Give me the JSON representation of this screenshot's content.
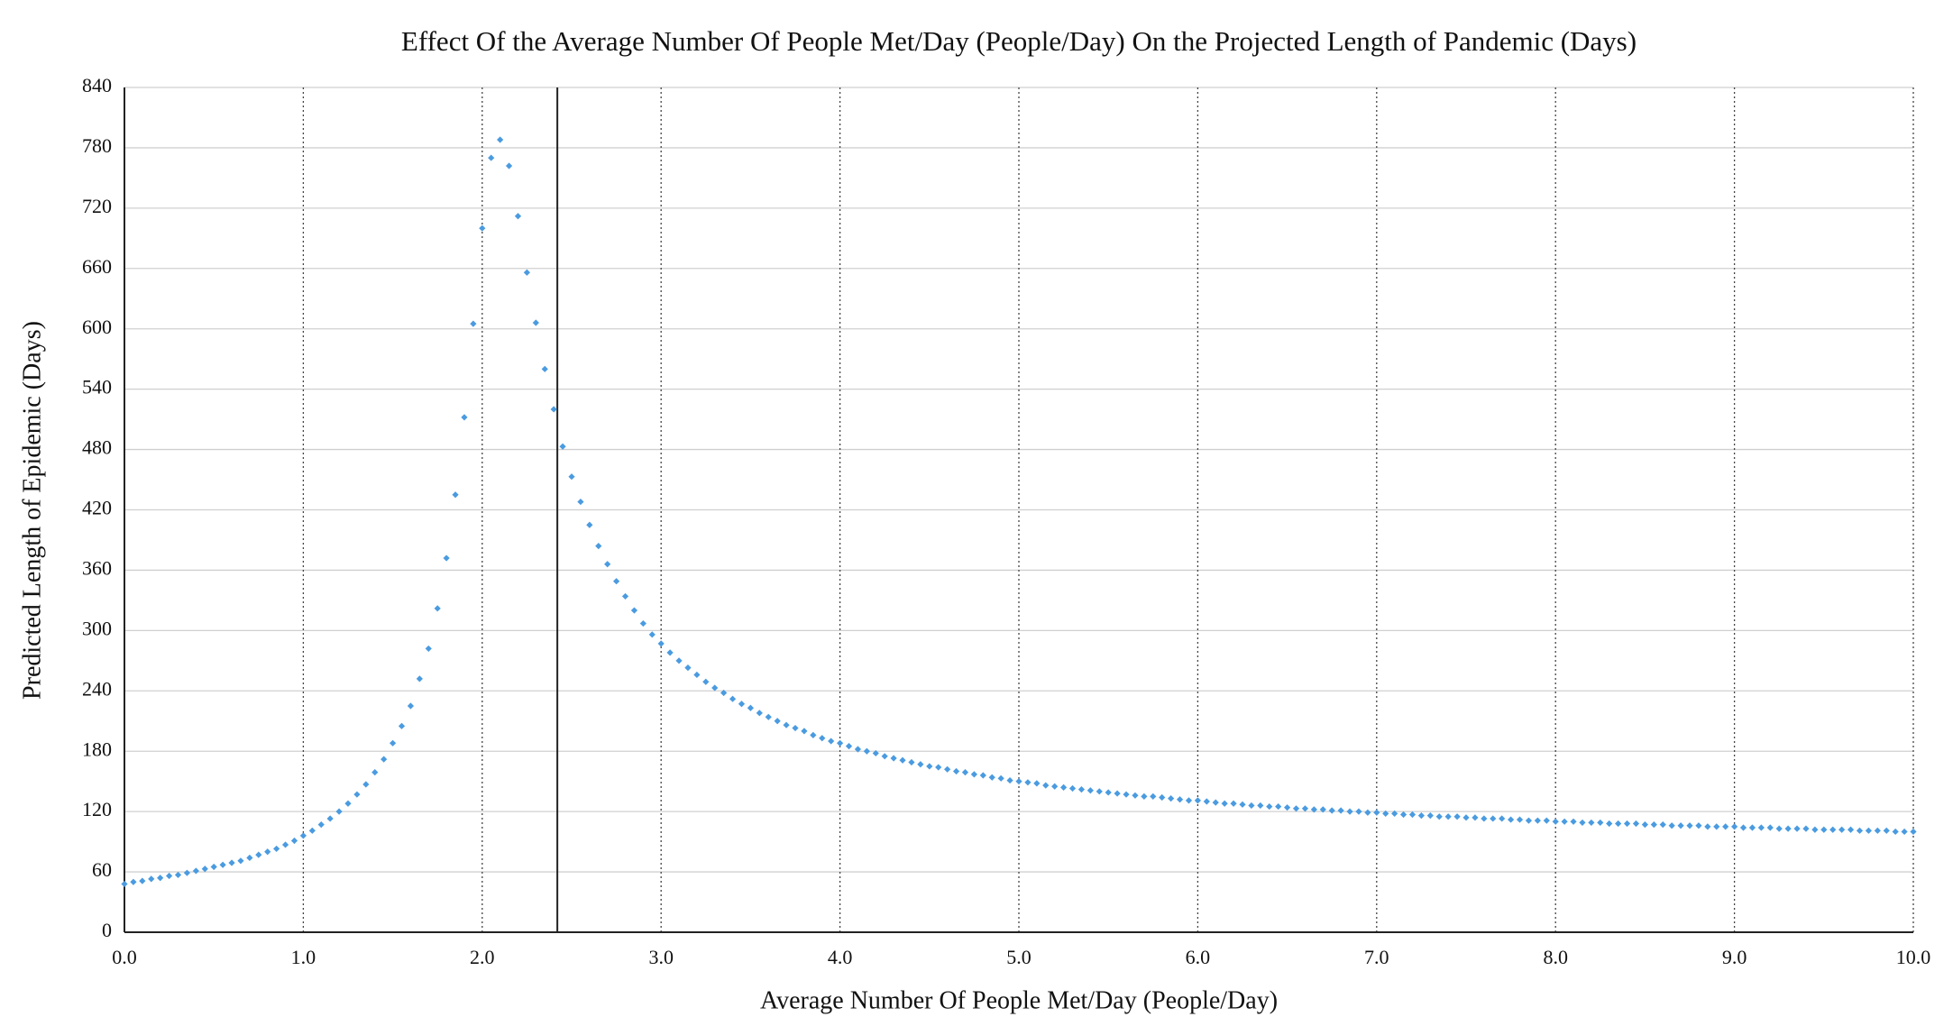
{
  "chart_data": {
    "type": "scatter",
    "title": "Effect Of the Average Number Of People Met/Day (People/Day) On the Projected Length of Pandemic (Days)",
    "x_label": "Average Number Of People Met/Day (People/Day)",
    "y_label": "Predicted Length of Epidemic (Days)",
    "color": "#4a9be0",
    "grid": true,
    "vline": 2.42,
    "xlim": [
      0,
      10
    ],
    "ylim": [
      0,
      840
    ],
    "xticks": [
      {
        "value": 0,
        "label": "0.0"
      },
      {
        "value": 1,
        "label": "1.0"
      },
      {
        "value": 2,
        "label": "2.0"
      },
      {
        "value": 3,
        "label": "3.0"
      },
      {
        "value": 4,
        "label": "4.0"
      },
      {
        "value": 5,
        "label": "5.0"
      },
      {
        "value": 6,
        "label": "6.0"
      },
      {
        "value": 7,
        "label": "7.0"
      },
      {
        "value": 8,
        "label": "8.0"
      },
      {
        "value": 9,
        "label": "9.0"
      },
      {
        "value": 10,
        "label": "10.0"
      }
    ],
    "yticks": [
      0,
      60,
      120,
      180,
      240,
      300,
      360,
      420,
      480,
      540,
      600,
      660,
      720,
      780,
      840
    ],
    "x": [
      0,
      0.05,
      0.1,
      0.15,
      0.2,
      0.25,
      0.3,
      0.35,
      0.4,
      0.45,
      0.5,
      0.55,
      0.6,
      0.65,
      0.7,
      0.75,
      0.8,
      0.85,
      0.9,
      0.95,
      1,
      1.05,
      1.1,
      1.15,
      1.2,
      1.25,
      1.3,
      1.35,
      1.4,
      1.45,
      1.5,
      1.55,
      1.6,
      1.65,
      1.7,
      1.75,
      1.8,
      1.85,
      1.9,
      1.95,
      2,
      2.05,
      2.1,
      2.15,
      2.2,
      2.25,
      2.3,
      2.35,
      2.4,
      2.45,
      2.5,
      2.55,
      2.6,
      2.65,
      2.7,
      2.75,
      2.8,
      2.85,
      2.9,
      2.95,
      3,
      3.05,
      3.1,
      3.15,
      3.2,
      3.25,
      3.3,
      3.35,
      3.4,
      3.45,
      3.5,
      3.55,
      3.6,
      3.65,
      3.7,
      3.75,
      3.8,
      3.85,
      3.9,
      3.95,
      4,
      4.05,
      4.1,
      4.15,
      4.2,
      4.25,
      4.3,
      4.35,
      4.4,
      4.45,
      4.5,
      4.55,
      4.6,
      4.65,
      4.7,
      4.75,
      4.8,
      4.85,
      4.9,
      4.95,
      5,
      5.05,
      5.1,
      5.15,
      5.2,
      5.25,
      5.3,
      5.35,
      5.4,
      5.45,
      5.5,
      5.55,
      5.6,
      5.65,
      5.7,
      5.75,
      5.8,
      5.85,
      5.9,
      5.95,
      6,
      6.05,
      6.1,
      6.15,
      6.2,
      6.25,
      6.3,
      6.35,
      6.4,
      6.45,
      6.5,
      6.55,
      6.6,
      6.65,
      6.7,
      6.75,
      6.8,
      6.85,
      6.9,
      6.95,
      7,
      7.05,
      7.1,
      7.15,
      7.2,
      7.25,
      7.3,
      7.35,
      7.4,
      7.45,
      7.5,
      7.55,
      7.6,
      7.65,
      7.7,
      7.75,
      7.8,
      7.85,
      7.9,
      7.95,
      8,
      8.05,
      8.1,
      8.15,
      8.2,
      8.25,
      8.3,
      8.35,
      8.4,
      8.45,
      8.5,
      8.55,
      8.6,
      8.65,
      8.7,
      8.75,
      8.8,
      8.85,
      8.9,
      8.95,
      9,
      9.05,
      9.1,
      9.15,
      9.2,
      9.25,
      9.3,
      9.35,
      9.4,
      9.45,
      9.5,
      9.55,
      9.6,
      9.65,
      9.7,
      9.75,
      9.8,
      9.85,
      9.9,
      9.95,
      10
    ],
    "values": [
      48,
      50,
      51,
      53,
      54,
      56,
      57,
      59,
      61,
      63,
      65,
      67,
      69,
      71,
      74,
      77,
      80,
      83,
      87,
      91,
      96,
      101,
      107,
      113,
      120,
      128,
      137,
      147,
      159,
      172,
      188,
      205,
      225,
      252,
      282,
      322,
      372,
      435,
      512,
      605,
      700,
      770,
      788,
      762,
      712,
      656,
      606,
      560,
      520,
      483,
      453,
      428,
      405,
      384,
      366,
      349,
      334,
      320,
      307,
      296,
      287,
      278,
      270,
      263,
      256,
      249,
      243,
      238,
      232,
      227,
      223,
      218,
      214,
      210,
      206,
      203,
      200,
      196,
      193,
      190,
      188,
      185,
      182,
      180,
      178,
      175,
      173,
      171,
      169,
      167,
      165,
      164,
      162,
      160,
      159,
      157,
      156,
      154,
      153,
      151,
      150,
      149,
      148,
      146,
      145,
      144,
      143,
      142,
      141,
      140,
      139,
      138,
      137,
      136,
      135,
      135,
      134,
      133,
      132,
      131,
      131,
      130,
      129,
      128,
      128,
      127,
      126,
      126,
      125,
      125,
      124,
      123,
      123,
      122,
      122,
      121,
      121,
      120,
      120,
      119,
      119,
      118,
      118,
      117,
      117,
      116,
      116,
      115,
      115,
      115,
      114,
      114,
      113,
      113,
      113,
      112,
      112,
      111,
      111,
      111,
      110,
      110,
      110,
      109,
      109,
      109,
      108,
      108,
      108,
      108,
      107,
      107,
      107,
      106,
      106,
      106,
      106,
      105,
      105,
      105,
      105,
      104,
      104,
      104,
      104,
      103,
      103,
      103,
      103,
      102,
      102,
      102,
      102,
      102,
      101,
      101,
      101,
      101,
      100,
      100,
      100
    ]
  }
}
